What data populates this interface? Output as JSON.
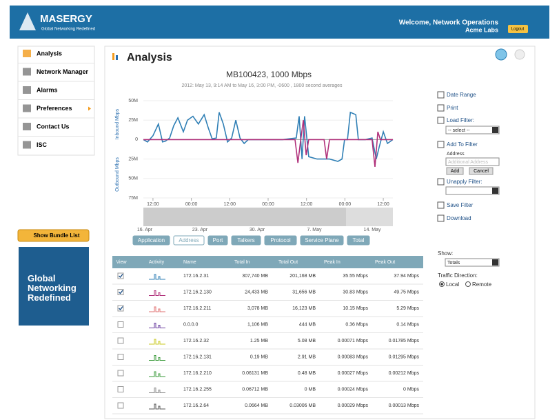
{
  "header": {
    "brand": "MASERGY",
    "tagline": "Global Networking Redefined",
    "welcome": "Welcome, Network Operations",
    "company": "Acme Labs",
    "logout": "Logout"
  },
  "menu": [
    "Analysis",
    "Network Manager",
    "Alarms",
    "Preferences",
    "Contact Us",
    "ISC"
  ],
  "bundle_button": "Show Bundle List",
  "promo": "Global Networking Redefined",
  "page_title": "Analysis",
  "chart": {
    "type": "line",
    "title": "MB100423, 1000 Mbps",
    "subtitle": "2012: May 13, 9:14 AM to May 16, 3:00 PM, -0600 , 1800 second averages",
    "y_label_top": "Inbound Mbps",
    "y_label_bottom": "Outbound Mbps",
    "ylim": [
      -75,
      50
    ],
    "yticks": [
      {
        "value": 50,
        "label": "50M"
      },
      {
        "value": 25,
        "label": "25M"
      },
      0,
      {
        "value": -25,
        "label": "25M"
      },
      {
        "value": -50,
        "label": "50M"
      },
      {
        "value": -75,
        "label": "75M"
      }
    ],
    "xlim": [
      0,
      78
    ],
    "xticks": [
      {
        "value": 3,
        "label": "12:00"
      },
      {
        "value": 15,
        "label": "00:00"
      },
      {
        "value": 27,
        "label": "12:00"
      },
      {
        "value": 39,
        "label": "00:00"
      },
      {
        "value": 51,
        "label": "12:00"
      },
      {
        "value": 63,
        "label": "00:00"
      },
      {
        "value": 75,
        "label": "12:00"
      }
    ],
    "series": [
      {
        "color": "#2f7fb5",
        "x": [
          0,
          1.3,
          3.0,
          4.7,
          6.0,
          6.9,
          8.2,
          9.5,
          10.8,
          12.5,
          13.8,
          15.5,
          17.2,
          19.0,
          20.3,
          21.5,
          22.8,
          23.7,
          25.0,
          26.3,
          27.6,
          28.9,
          30.2,
          31.5,
          32.8,
          37.1,
          43.5,
          47.8,
          48.7,
          49.6,
          50.4,
          51.7,
          54.3,
          58.2,
          60.8,
          62.1,
          62.9,
          63.8,
          64.7,
          66.4,
          67.2,
          69.4,
          71.5,
          72.8,
          73.7,
          75.0,
          76.3,
          78
        ],
        "values": [
          0,
          -3,
          5,
          20,
          -3,
          -2,
          2,
          18,
          28,
          10,
          25,
          30,
          20,
          32,
          15,
          1,
          2,
          35,
          20,
          -3,
          2,
          25,
          2,
          -5,
          0,
          0,
          0,
          2,
          30,
          -25,
          30,
          -22,
          -25,
          -25,
          -28,
          -25,
          0,
          0,
          35,
          32,
          0,
          0,
          2,
          -25,
          -10,
          10,
          -5,
          0
        ]
      },
      {
        "color": "#b0307a",
        "x": [
          0,
          47.4,
          48.3,
          49.2,
          50.0,
          50.9,
          51.7,
          56.5,
          57.3,
          58.2,
          71.5,
          72.4,
          73.3,
          74.1,
          78
        ],
        "values": [
          0,
          0,
          -30,
          0,
          25,
          -20,
          0,
          0,
          -25,
          0,
          0,
          -35,
          10,
          0,
          0
        ]
      }
    ],
    "overview_dates": [
      "16. Apr",
      "23. Apr",
      "30. Apr",
      "7. May",
      "14. May"
    ],
    "tabs": [
      "Application",
      "Address",
      "Port",
      "Talkers",
      "Protocol",
      "Service Plane",
      "Total"
    ],
    "active_tab": 1
  },
  "side_actions": {
    "date_range": "Date Range",
    "print": "Print",
    "load_filter": "Load Filter:",
    "select": "-- select --",
    "add_to_filter": "Add To Filter",
    "address": "Address",
    "address_placeholder": "Additional Address",
    "add": "Add",
    "cancel": "Cancel",
    "unapply": "Unapply Filter:",
    "save": "Save Filter",
    "download": "Download",
    "show": "Show:",
    "show_value": "Totals",
    "direction": "Traffic Direction:",
    "local": "Local",
    "remote": "Remote"
  },
  "table": {
    "columns": [
      "View",
      "Activity",
      "Name",
      "Total In",
      "Total Out",
      "Peak In",
      "Peak Out"
    ],
    "rows": [
      {
        "checked": true,
        "cells": [
          "172.16.2.31",
          "307,740 MB",
          "201,168 MB",
          "35.55 Mbps",
          "37.94 Mbps"
        ]
      },
      {
        "checked": true,
        "cells": [
          "172.16.2.130",
          "24,433 MB",
          "31,656 MB",
          "30.83 Mbps",
          "49.75 Mbps"
        ]
      },
      {
        "checked": true,
        "cells": [
          "172.16.2.211",
          "3,078 MB",
          "16,123 MB",
          "10.15 Mbps",
          "5.29 Mbps"
        ]
      },
      {
        "checked": false,
        "cells": [
          "0.0.0.0",
          "1,106 MB",
          "444 MB",
          "0.36 Mbps",
          "0.14 Mbps"
        ]
      },
      {
        "checked": false,
        "cells": [
          "172.16.2.32",
          "1.25 MB",
          "5.08 MB",
          "0.00071 Mbps",
          "0.01785 Mbps"
        ]
      },
      {
        "checked": false,
        "cells": [
          "172.16.2.131",
          "0.19 MB",
          "2.91 MB",
          "0.00083 Mbps",
          "0.01295 Mbps"
        ]
      },
      {
        "checked": false,
        "cells": [
          "172.16.2.210",
          "0.06131 MB",
          "0.48 MB",
          "0.00027 Mbps",
          "0.00212 Mbps"
        ]
      },
      {
        "checked": false,
        "cells": [
          "172.16.2.255",
          "0.06712 MB",
          "0 MB",
          "0.00024 Mbps",
          "0 Mbps"
        ]
      },
      {
        "checked": false,
        "cells": [
          "172.16.2.64",
          "0.0664 MB",
          "0.03006 MB",
          "0.00029 Mbps",
          "0.00013 Mbps"
        ]
      }
    ]
  }
}
